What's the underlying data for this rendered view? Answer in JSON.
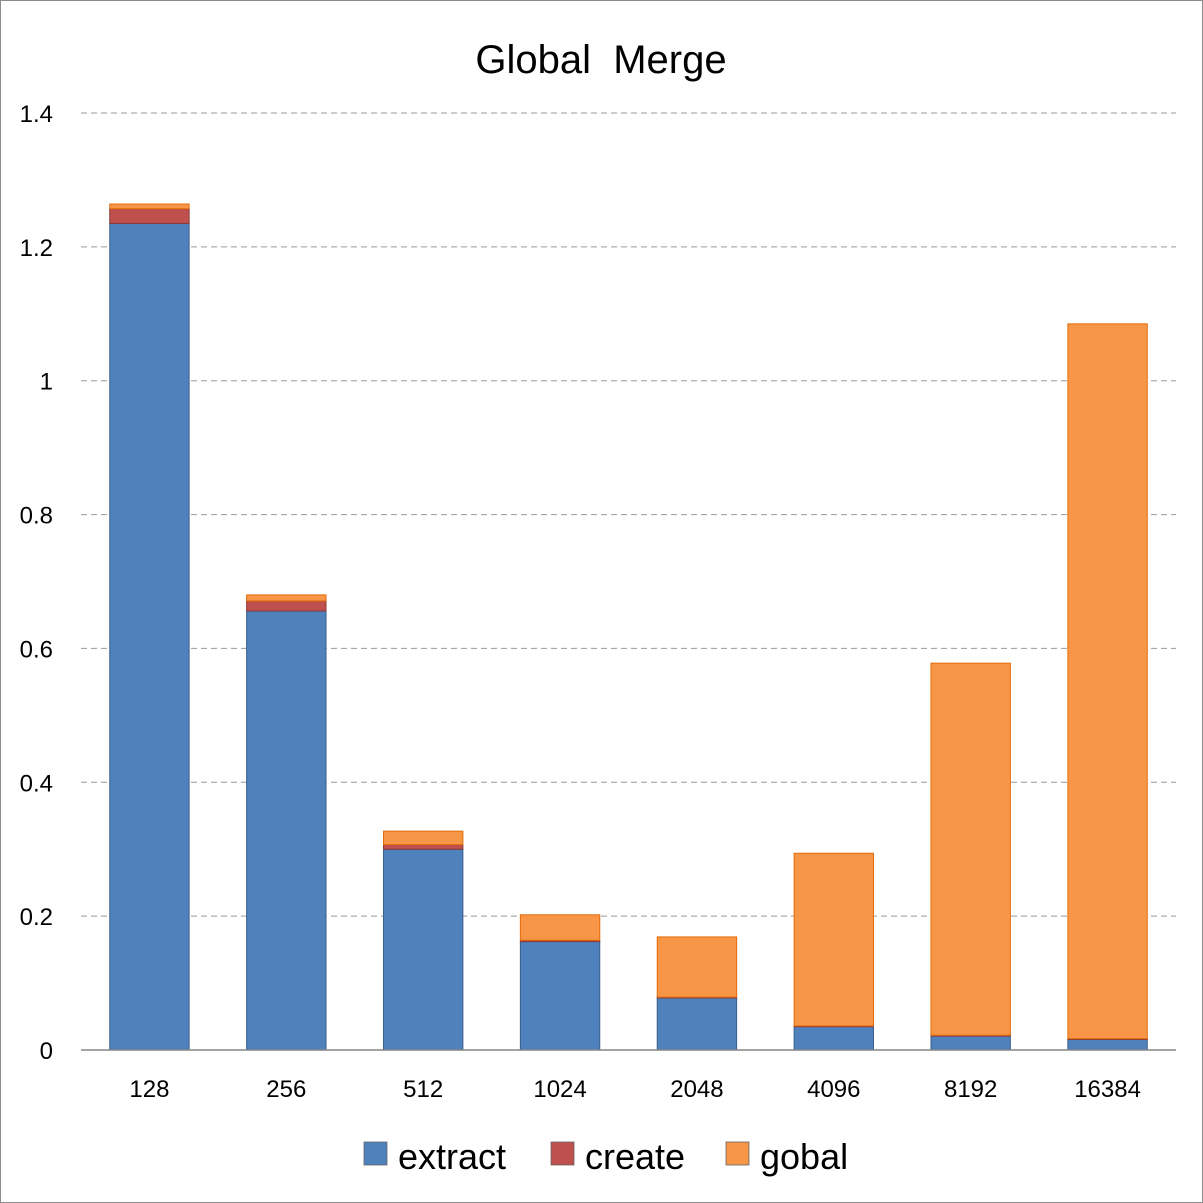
{
  "chart_data": {
    "type": "bar",
    "stacked": true,
    "title": "Global  Merge",
    "xlabel": "",
    "ylabel": "",
    "categories": [
      "128",
      "256",
      "512",
      "1024",
      "2048",
      "4096",
      "8192",
      "16384"
    ],
    "series": [
      {
        "name": "extract",
        "color": "#4F81BD",
        "values": [
          1.235,
          0.656,
          0.3,
          0.162,
          0.078,
          0.035,
          0.021,
          0.016
        ]
      },
      {
        "name": "create",
        "color": "#C0504D",
        "values": [
          0.022,
          0.015,
          0.007,
          0.002,
          0.001,
          0.001,
          0.001,
          0.001
        ]
      },
      {
        "name": "gobal",
        "color": "#F79646",
        "values": [
          0.007,
          0.009,
          0.02,
          0.038,
          0.09,
          0.258,
          0.556,
          1.068
        ]
      }
    ],
    "ylim": [
      0,
      1.4
    ],
    "yticks": [
      "0",
      "0.2",
      "0.4",
      "0.6",
      "0.8",
      "1",
      "1.2",
      "1.4"
    ],
    "grid": true,
    "legend_position": "bottom"
  }
}
